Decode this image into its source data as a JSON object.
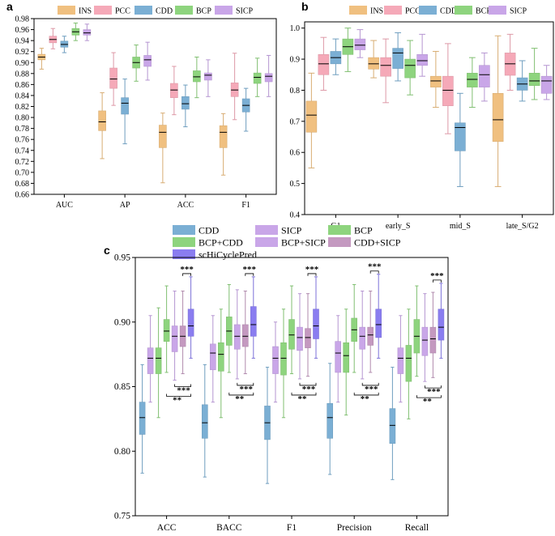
{
  "colors": {
    "INS": "#F0C080",
    "PCC": "#F5A9B8",
    "CDD": "#7BAFD4",
    "BCP": "#8ED47E",
    "SICP": "#C9A6E8",
    "BCP+CDD": "#8ED47E",
    "BCP+SICP": "#C9A6E8",
    "CDD+SICP": "#C499C0",
    "scHiCyclePred": "#8A7DF0"
  },
  "chart_data": [
    {
      "panel": "a",
      "type": "box",
      "legend": [
        "INS",
        "PCC",
        "CDD",
        "BCP",
        "SICP"
      ],
      "categories": [
        "AUC",
        "AP",
        "ACC",
        "F1"
      ],
      "ylim": [
        0.66,
        0.98
      ],
      "yticks": [
        "0.66",
        "0.68",
        "0.70",
        "0.72",
        "0.74",
        "0.76",
        "0.78",
        "0.80",
        "0.82",
        "0.84",
        "0.86",
        "0.88",
        "0.90",
        "0.92",
        "0.94",
        "0.96",
        "0.98"
      ],
      "series": [
        {
          "name": "INS",
          "boxes": [
            [
              0.888,
              0.905,
              0.91,
              0.915,
              0.926
            ],
            [
              0.725,
              0.776,
              0.792,
              0.812,
              0.845
            ],
            [
              0.681,
              0.745,
              0.773,
              0.786,
              0.808
            ],
            [
              0.695,
              0.745,
              0.773,
              0.785,
              0.807
            ]
          ]
        },
        {
          "name": "PCC",
          "boxes": [
            [
              0.925,
              0.936,
              0.942,
              0.948,
              0.962
            ],
            [
              0.822,
              0.853,
              0.87,
              0.89,
              0.918
            ],
            [
              0.805,
              0.836,
              0.85,
              0.862,
              0.893
            ],
            [
              0.796,
              0.838,
              0.85,
              0.863,
              0.917
            ]
          ]
        },
        {
          "name": "CDD",
          "boxes": [
            [
              0.918,
              0.928,
              0.933,
              0.939,
              0.948
            ],
            [
              0.752,
              0.806,
              0.826,
              0.836,
              0.87
            ],
            [
              0.783,
              0.815,
              0.825,
              0.838,
              0.859
            ],
            [
              0.775,
              0.81,
              0.822,
              0.834,
              0.853
            ]
          ]
        },
        {
          "name": "BCP",
          "boxes": [
            [
              0.94,
              0.95,
              0.956,
              0.962,
              0.972
            ],
            [
              0.866,
              0.89,
              0.9,
              0.91,
              0.932
            ],
            [
              0.836,
              0.865,
              0.874,
              0.885,
              0.91
            ],
            [
              0.838,
              0.862,
              0.873,
              0.881,
              0.908
            ]
          ]
        },
        {
          "name": "SICP",
          "boxes": [
            [
              0.94,
              0.95,
              0.954,
              0.96,
              0.97
            ],
            [
              0.868,
              0.893,
              0.905,
              0.913,
              0.937
            ],
            [
              0.838,
              0.868,
              0.877,
              0.881,
              0.905
            ],
            [
              0.838,
              0.865,
              0.875,
              0.88,
              0.913
            ]
          ]
        }
      ]
    },
    {
      "panel": "b",
      "type": "box",
      "legend": [
        "INS",
        "PCC",
        "CDD",
        "BCP",
        "SICP"
      ],
      "categories": [
        "G1",
        "early_S",
        "mid_S",
        "late_S/G2"
      ],
      "ylim": [
        0.4,
        1.02
      ],
      "yticks": [
        "0.4",
        "0.5",
        "0.6",
        "0.7",
        "0.8",
        "0.9",
        "1.0"
      ],
      "series": [
        {
          "name": "INS",
          "boxes": [
            [
              0.55,
              0.665,
              0.72,
              0.765,
              0.855
            ],
            [
              0.84,
              0.868,
              0.885,
              0.905,
              0.96
            ],
            [
              0.745,
              0.81,
              0.83,
              0.845,
              0.925
            ],
            [
              0.49,
              0.635,
              0.705,
              0.79,
              0.975
            ]
          ]
        },
        {
          "name": "PCC",
          "boxes": [
            [
              0.8,
              0.85,
              0.885,
              0.915,
              0.97
            ],
            [
              0.76,
              0.845,
              0.88,
              0.905,
              0.965
            ],
            [
              0.66,
              0.75,
              0.8,
              0.845,
              0.95
            ],
            [
              0.8,
              0.848,
              0.885,
              0.92,
              0.98
            ]
          ]
        },
        {
          "name": "CDD",
          "boxes": [
            [
              0.85,
              0.885,
              0.905,
              0.925,
              0.965
            ],
            [
              0.83,
              0.87,
              0.92,
              0.935,
              0.985
            ],
            [
              0.49,
              0.605,
              0.68,
              0.695,
              0.79
            ],
            [
              0.765,
              0.8,
              0.82,
              0.84,
              0.895
            ]
          ]
        },
        {
          "name": "BCP",
          "boxes": [
            [
              0.86,
              0.915,
              0.94,
              0.965,
              1.0
            ],
            [
              0.785,
              0.84,
              0.88,
              0.9,
              0.96
            ],
            [
              0.745,
              0.81,
              0.835,
              0.855,
              0.905
            ],
            [
              0.77,
              0.815,
              0.83,
              0.855,
              0.935
            ]
          ]
        },
        {
          "name": "SICP",
          "boxes": [
            [
              0.905,
              0.93,
              0.945,
              0.965,
              0.995
            ],
            [
              0.845,
              0.88,
              0.895,
              0.915,
              0.98
            ],
            [
              0.765,
              0.81,
              0.85,
              0.88,
              0.92
            ],
            [
              0.77,
              0.79,
              0.83,
              0.845,
              0.88
            ]
          ]
        }
      ]
    },
    {
      "panel": "c",
      "type": "box",
      "legend": [
        "CDD",
        "SICP",
        "BCP",
        "BCP+CDD",
        "BCP+SICP",
        "CDD+SICP",
        "scHiCyclePred"
      ],
      "categories": [
        "ACC",
        "BACC",
        "F1",
        "Precision",
        "Recall"
      ],
      "ylim": [
        0.75,
        0.95
      ],
      "yticks": [
        "0.75",
        "0.80",
        "0.85",
        "0.90",
        "0.95"
      ],
      "significance": {
        "top": "***",
        "bracket_1": "***",
        "bracket_2": "**"
      },
      "series": [
        {
          "name": "CDD",
          "boxes": [
            [
              0.783,
              0.813,
              0.826,
              0.838,
              0.867
            ],
            [
              0.78,
              0.81,
              0.822,
              0.836,
              0.867
            ],
            [
              0.775,
              0.809,
              0.822,
              0.835,
              0.865
            ],
            [
              0.782,
              0.81,
              0.826,
              0.837,
              0.868
            ],
            [
              0.778,
              0.806,
              0.82,
              0.833,
              0.865
            ]
          ]
        },
        {
          "name": "SICP",
          "boxes": [
            [
              0.838,
              0.86,
              0.872,
              0.88,
              0.905
            ],
            [
              0.838,
              0.863,
              0.876,
              0.883,
              0.905
            ],
            [
              0.838,
              0.86,
              0.872,
              0.881,
              0.9
            ],
            [
              0.838,
              0.861,
              0.876,
              0.885,
              0.905
            ],
            [
              0.838,
              0.86,
              0.872,
              0.88,
              0.905
            ]
          ]
        },
        {
          "name": "BCP",
          "boxes": [
            [
              0.826,
              0.86,
              0.872,
              0.88,
              0.911
            ],
            [
              0.826,
              0.862,
              0.875,
              0.884,
              0.91
            ],
            [
              0.826,
              0.859,
              0.872,
              0.884,
              0.91
            ],
            [
              0.828,
              0.861,
              0.874,
              0.884,
              0.91
            ],
            [
              0.825,
              0.854,
              0.872,
              0.882,
              0.91
            ]
          ]
        },
        {
          "name": "BCP+CDD",
          "boxes": [
            [
              0.861,
              0.885,
              0.893,
              0.902,
              0.928
            ],
            [
              0.861,
              0.882,
              0.893,
              0.904,
              0.929
            ],
            [
              0.86,
              0.879,
              0.89,
              0.902,
              0.928
            ],
            [
              0.861,
              0.885,
              0.894,
              0.903,
              0.929
            ],
            [
              0.858,
              0.876,
              0.889,
              0.902,
              0.928
            ]
          ]
        },
        {
          "name": "BCP+SICP",
          "boxes": [
            [
              0.855,
              0.877,
              0.889,
              0.897,
              0.924
            ],
            [
              0.856,
              0.879,
              0.889,
              0.898,
              0.925
            ],
            [
              0.856,
              0.878,
              0.888,
              0.896,
              0.922
            ],
            [
              0.856,
              0.879,
              0.889,
              0.896,
              0.924
            ],
            [
              0.854,
              0.874,
              0.886,
              0.896,
              0.922
            ]
          ]
        },
        {
          "name": "CDD+SICP",
          "boxes": [
            [
              0.86,
              0.881,
              0.889,
              0.897,
              0.924
            ],
            [
              0.86,
              0.881,
              0.889,
              0.898,
              0.924
            ],
            [
              0.858,
              0.88,
              0.888,
              0.895,
              0.922
            ],
            [
              0.861,
              0.882,
              0.89,
              0.896,
              0.924
            ],
            [
              0.857,
              0.876,
              0.887,
              0.896,
              0.923
            ]
          ]
        },
        {
          "name": "scHiCyclePred",
          "boxes": [
            [
              0.872,
              0.889,
              0.897,
              0.91,
              0.935
            ],
            [
              0.872,
              0.889,
              0.898,
              0.912,
              0.935
            ],
            [
              0.872,
              0.887,
              0.897,
              0.91,
              0.935
            ],
            [
              0.872,
              0.888,
              0.898,
              0.91,
              0.937
            ],
            [
              0.872,
              0.886,
              0.896,
              0.91,
              0.93
            ]
          ]
        }
      ]
    }
  ]
}
